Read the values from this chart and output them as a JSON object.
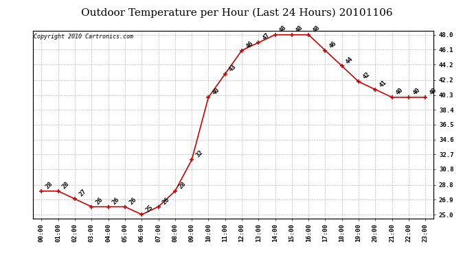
{
  "title": "Outdoor Temperature per Hour (Last 24 Hours) 20101106",
  "copyright": "Copyright 2010 Cartronics.com",
  "hours": [
    "00:00",
    "01:00",
    "02:00",
    "03:00",
    "04:00",
    "05:00",
    "06:00",
    "07:00",
    "08:00",
    "09:00",
    "10:00",
    "11:00",
    "12:00",
    "13:00",
    "14:00",
    "15:00",
    "16:00",
    "17:00",
    "18:00",
    "19:00",
    "20:00",
    "21:00",
    "22:00",
    "23:00"
  ],
  "temps": [
    28,
    28,
    27,
    26,
    26,
    26,
    25,
    26,
    28,
    32,
    40,
    43,
    46,
    47,
    48,
    48,
    48,
    46,
    44,
    42,
    41,
    40,
    40,
    40
  ],
  "line_color": "#cc0000",
  "bg_color": "#ffffff",
  "grid_color": "#bbbbbb",
  "ylim_min": 25.0,
  "ylim_max": 48.0,
  "yticks": [
    25.0,
    26.9,
    28.8,
    30.8,
    32.7,
    34.6,
    36.5,
    38.4,
    40.3,
    42.2,
    44.2,
    46.1,
    48.0
  ],
  "title_fontsize": 11,
  "label_fontsize": 6.5,
  "tick_fontsize": 6.5,
  "copyright_fontsize": 6
}
